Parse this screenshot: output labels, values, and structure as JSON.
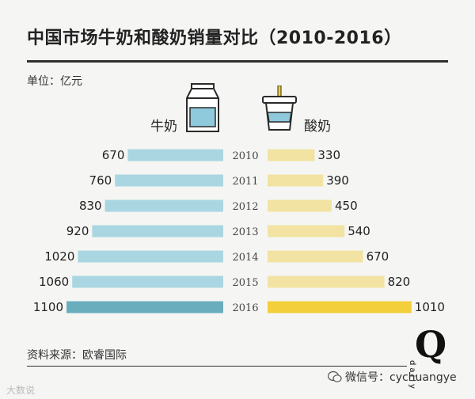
{
  "header": {
    "title": "中国市场牛奶和酸奶销量对比（2010-2016）",
    "unit": "单位：亿元"
  },
  "legend": {
    "milk": "牛奶",
    "yogurt": "酸奶",
    "milk_icon": "milk-carton-icon",
    "yogurt_icon": "yogurt-cup-icon"
  },
  "footer": {
    "source": "资料来源：欧睿国际",
    "brand_letter": "Q",
    "brand_word": "daily",
    "wechat": "微信号：cychuangye",
    "watermark": "大数说",
    "wechat_icon": "wechat-icon"
  },
  "colors": {
    "milk": "#a9d6e1",
    "milk_highlight": "#6aaebe",
    "yogurt": "#f2e3a2",
    "yogurt_highlight": "#f2cf3b",
    "background": "#f5f5f4"
  },
  "chart_data": {
    "type": "bar",
    "orientation": "horizontal-diverging",
    "title": "中国市场牛奶和酸奶销量对比（2010-2016）",
    "unit": "亿元",
    "categories": [
      "2010",
      "2011",
      "2012",
      "2013",
      "2014",
      "2015",
      "2016"
    ],
    "series": [
      {
        "name": "牛奶",
        "values": [
          670,
          760,
          830,
          920,
          1020,
          1060,
          1100
        ]
      },
      {
        "name": "酸奶",
        "values": [
          330,
          390,
          450,
          540,
          670,
          820,
          1010
        ]
      }
    ],
    "highlight_category": "2016"
  }
}
